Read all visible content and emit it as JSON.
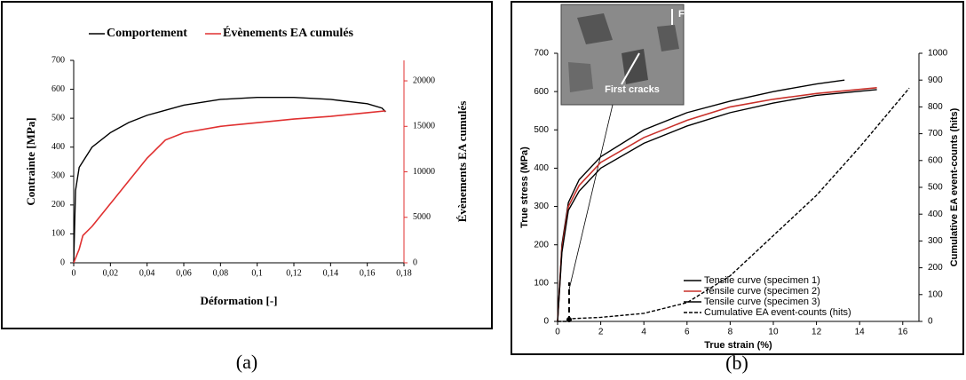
{
  "chart_data": [
    {
      "type": "line",
      "caption": "(a)",
      "xlabel": "Déformation [-]",
      "ylabel": "Contrainte [MPa]",
      "y2label": "Évènements EA cumulés",
      "xlim": [
        0,
        0.18
      ],
      "xticks": [
        0,
        {
          "value": 0.02,
          "label": "0,02"
        },
        {
          "value": 0.04,
          "label": "0,04"
        },
        {
          "value": 0.06,
          "label": "0,06"
        },
        {
          "value": 0.08,
          "label": "0,08"
        },
        {
          "value": 0.1,
          "label": "0,1"
        },
        {
          "value": 0.12,
          "label": "0,12"
        },
        {
          "value": 0.14,
          "label": "0,14"
        },
        {
          "value": 0.16,
          "label": "0,16"
        },
        {
          "value": 0.18,
          "label": "0,18"
        }
      ],
      "ylim": [
        0,
        700
      ],
      "yticks": [
        0,
        100,
        200,
        300,
        400,
        500,
        600,
        700
      ],
      "y2lim": [
        0,
        22250
      ],
      "y2ticks": [
        0,
        5000,
        10000,
        15000,
        20000
      ],
      "y2color": "#e03030",
      "legend": "top",
      "series": [
        {
          "name": "Comportement",
          "color": "#000000",
          "x": [
            0,
            0.001,
            0.003,
            0.01,
            0.02,
            0.03,
            0.04,
            0.06,
            0.08,
            0.1,
            0.12,
            0.14,
            0.16,
            0.168,
            0.17
          ],
          "values": [
            0,
            250,
            330,
            400,
            450,
            485,
            510,
            545,
            565,
            572,
            572,
            565,
            550,
            535,
            522
          ]
        },
        {
          "name": "Évènements EA cumulés",
          "color": "#e03030",
          "axis": "y2",
          "x": [
            0,
            0.003,
            0.005,
            0.01,
            0.02,
            0.03,
            0.04,
            0.05,
            0.06,
            0.08,
            0.1,
            0.12,
            0.14,
            0.16,
            0.17
          ],
          "values": [
            0,
            1500,
            3000,
            4000,
            6500,
            9000,
            11500,
            13500,
            14300,
            15000,
            15400,
            15800,
            16100,
            16500,
            16700
          ]
        }
      ]
    },
    {
      "type": "line",
      "caption": "(b)",
      "xlabel": "True strain (%)",
      "ylabel": "True stress (MPa)",
      "y2label": "Cumulative EA event-counts (hits)",
      "xlim": [
        0,
        16.75
      ],
      "xticks": [
        0,
        2,
        4,
        6,
        8,
        10,
        12,
        14,
        16
      ],
      "ylim": [
        0,
        700
      ],
      "yticks": [
        0,
        100,
        200,
        300,
        400,
        500,
        600,
        700
      ],
      "y2lim": [
        0,
        1000
      ],
      "y2ticks": [
        0,
        100,
        200,
        300,
        400,
        500,
        600,
        700,
        800,
        900,
        1000
      ],
      "legend": "lower right",
      "annotations": [
        "First cracks",
        "F"
      ],
      "series": [
        {
          "name": "Tensile curve (specimen 1)",
          "color": "#000000",
          "x": [
            0,
            0.2,
            0.5,
            1,
            2,
            4,
            6,
            8,
            10,
            12,
            13.3
          ],
          "values": [
            0,
            200,
            310,
            370,
            430,
            500,
            545,
            575,
            600,
            620,
            630
          ]
        },
        {
          "name": "Tensile curve (specimen 2)",
          "color": "#c8302a",
          "x": [
            0,
            0.2,
            0.5,
            1,
            2,
            4,
            6,
            8,
            10,
            12,
            14.8
          ],
          "values": [
            0,
            190,
            300,
            355,
            415,
            480,
            525,
            560,
            580,
            595,
            610
          ]
        },
        {
          "name": "Tensile curve (specimen 3)",
          "color": "#000000",
          "x": [
            0,
            0.2,
            0.5,
            1,
            2,
            4,
            6,
            8,
            10,
            12,
            14.8
          ],
          "values": [
            0,
            180,
            290,
            340,
            400,
            465,
            510,
            545,
            570,
            590,
            605
          ]
        },
        {
          "name": "Cumulative EA event-counts (hits)",
          "color": "#000000",
          "axis": "y2",
          "style": "dashed",
          "x": [
            0,
            0.5,
            0.6,
            2,
            4,
            6,
            8,
            10,
            12,
            14,
            16.3
          ],
          "values": [
            0,
            0,
            10,
            15,
            30,
            70,
            170,
            320,
            470,
            650,
            870
          ]
        }
      ]
    }
  ]
}
